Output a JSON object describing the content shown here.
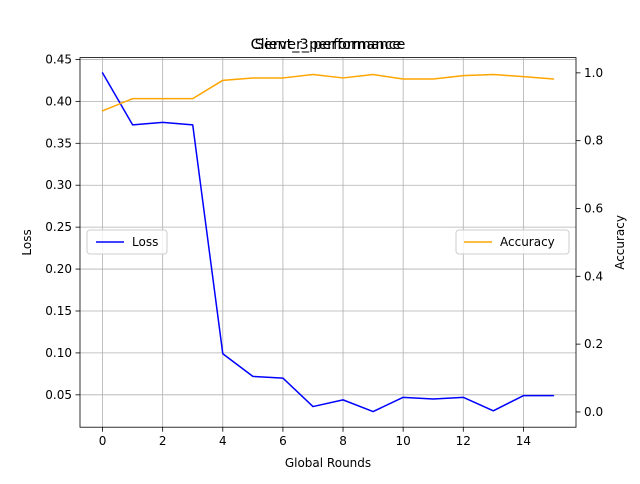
{
  "chart_data": {
    "type": "line",
    "titles": [
      "Client_3 performance",
      "Server_performance"
    ],
    "xlabel": "Global Rounds",
    "ylabel_left": "Loss",
    "ylabel_right": "Accuracy",
    "grid": true,
    "xlim": [
      -0.75,
      15.75
    ],
    "ylim_left": [
      0.0114,
      0.4522
    ],
    "ylim_right": [
      -0.045,
      1.045
    ],
    "x_ticks": [
      0,
      2,
      4,
      6,
      8,
      10,
      12,
      14
    ],
    "y_left_ticks": [
      0.05,
      0.1,
      0.15,
      0.2,
      0.25,
      0.3,
      0.35,
      0.4,
      0.45
    ],
    "y_right_ticks": [
      0.0,
      0.2,
      0.4,
      0.6,
      0.8,
      1.0
    ],
    "x": [
      0,
      1,
      2,
      3,
      4,
      5,
      6,
      7,
      8,
      9,
      10,
      11,
      12,
      13,
      14,
      15
    ],
    "series": [
      {
        "name": "Loss",
        "axis": "left",
        "color": "#0000ff",
        "values": [
          0.434,
          0.372,
          0.375,
          0.372,
          0.099,
          0.072,
          0.07,
          0.036,
          0.044,
          0.03,
          0.047,
          0.045,
          0.047,
          0.031,
          0.049,
          0.049
        ]
      },
      {
        "name": "Accuracy",
        "axis": "right",
        "color": "#ffa500",
        "values": [
          0.888,
          0.924,
          0.924,
          0.924,
          0.978,
          0.985,
          0.985,
          0.995,
          0.985,
          0.995,
          0.982,
          0.982,
          0.992,
          0.995,
          0.989,
          0.982
        ]
      }
    ],
    "legends": {
      "loss_position": "center-left",
      "accuracy_position": "center-right"
    }
  }
}
